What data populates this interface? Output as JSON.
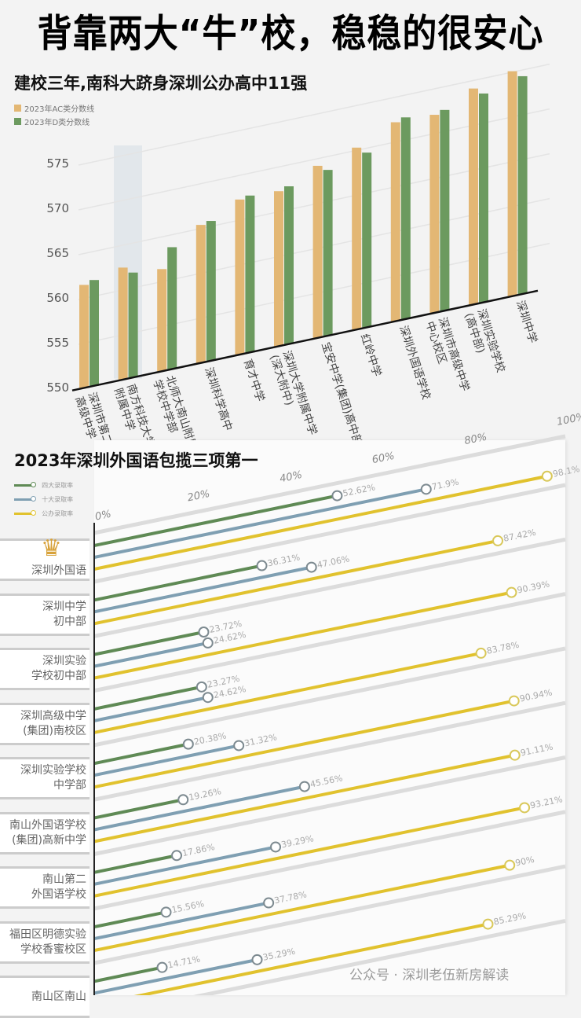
{
  "header": {
    "title": "背靠两大“牛”校，稳稳的很安心"
  },
  "chart_data": [
    {
      "type": "bar",
      "title": "建校三年,南科大跻身深圳公办高中11强",
      "categories": [
        [
          "深圳市第二",
          "高级中学"
        ],
        [
          "南方科技大学",
          "附属中学"
        ],
        [
          "北师大南山附属",
          "学校中学部"
        ],
        [
          "深圳科学高中"
        ],
        [
          "育才中学"
        ],
        [
          "深圳大学附属中学",
          "(深大附中)"
        ],
        [
          "宝安中学(集团)高中部"
        ],
        [
          "红岭中学"
        ],
        [
          "深圳外国语学校"
        ],
        [
          "深圳市高级中学",
          "中心校区"
        ],
        [
          "深圳实验学校",
          "(高中部)"
        ],
        [
          "深圳中学"
        ]
      ],
      "series": [
        {
          "name": "2023年AC类分数线",
          "color": "#e3b774",
          "values": [
            561.5,
            562.5,
            561.4,
            565.4,
            567.3,
            567.3,
            569.2,
            570.3,
            572.2,
            572.1,
            574.1,
            575.1
          ]
        },
        {
          "name": "2023年D类分数线",
          "color": "#6c9a5f",
          "values": [
            561.8,
            561.7,
            563.6,
            565.6,
            567.5,
            567.6,
            568.5,
            569.5,
            572.5,
            572.4,
            573.3,
            574.3
          ]
        }
      ],
      "highlight_category": "南方科技大学附属中学",
      "ylim": [
        550,
        577
      ],
      "yticks": [
        "550",
        "555",
        "560",
        "565",
        "570",
        "575"
      ],
      "grid": true,
      "legend": "top-left"
    },
    {
      "type": "line",
      "title": "2023年深圳外国语包揽三项第一",
      "xticks": [
        "0%",
        "20%",
        "40%",
        "60%",
        "80%",
        "100%"
      ],
      "xlim": [
        0,
        100
      ],
      "legend": "top-left",
      "series": [
        {
          "name": "四大录取率",
          "color": "#5f8a55"
        },
        {
          "name": "十大录取率",
          "color": "#7f9fb2"
        },
        {
          "name": "公办录取率",
          "color": "#e1c22e"
        }
      ],
      "rows": [
        {
          "label": [
            "深圳外国语"
          ],
          "crown": true,
          "values": [
            52.62,
            71.9,
            98.1
          ],
          "texts": [
            "52.62%",
            "71.9%",
            "98.1%"
          ]
        },
        {
          "label": [
            "深圳中学",
            "初中部"
          ],
          "values": [
            36.31,
            47.06,
            87.42
          ],
          "texts": [
            "36.31%",
            "47.06%",
            "87.42%"
          ]
        },
        {
          "label": [
            "深圳实验",
            "学校初中部"
          ],
          "values": [
            23.72,
            24.62,
            90.39
          ],
          "texts": [
            "23.72%",
            "24.62%",
            "90.39%"
          ]
        },
        {
          "label": [
            "深圳高级中学",
            "(集团)南校区"
          ],
          "values": [
            23.27,
            24.62,
            83.78
          ],
          "texts": [
            "23.27%",
            "24.62%",
            "83.78%"
          ]
        },
        {
          "label": [
            "深圳实验学校",
            "中学部"
          ],
          "values": [
            20.38,
            31.32,
            90.94
          ],
          "texts": [
            "20.38%",
            "31.32%",
            "90.94%"
          ]
        },
        {
          "label": [
            "南山外国语学校",
            "(集团)高新中学"
          ],
          "values": [
            19.26,
            45.56,
            91.11
          ],
          "texts": [
            "19.26%",
            "45.56%",
            "91.11%"
          ]
        },
        {
          "label": [
            "南山第二",
            "外国语学校"
          ],
          "values": [
            17.86,
            39.29,
            93.21
          ],
          "texts": [
            "17.86%",
            "39.29%",
            "93.21%"
          ]
        },
        {
          "label": [
            "福田区明德实验",
            "学校香蜜校区"
          ],
          "values": [
            15.56,
            37.78,
            90
          ],
          "texts": [
            "15.56%",
            "37.78%",
            "90%"
          ]
        },
        {
          "label": [
            "南山区南山"
          ],
          "values": [
            14.71,
            35.29,
            85.29
          ],
          "texts": [
            "14.71%",
            "35.29%",
            "85.29%"
          ]
        }
      ]
    }
  ],
  "watermark": "公众号 · 深圳老伍新房解读"
}
